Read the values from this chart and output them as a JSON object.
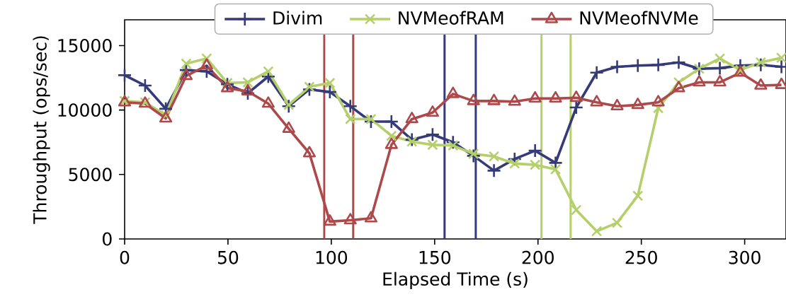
{
  "chart_data": {
    "type": "line",
    "xlabel": "Elapsed Time (s)",
    "ylabel": "Throughput (ops/sec)",
    "x": [
      0,
      9.9,
      19.9,
      29.8,
      39.7,
      49.7,
      59.6,
      69.5,
      79.4,
      89.4,
      99.3,
      109.2,
      119.2,
      129.1,
      139.0,
      149.0,
      158.9,
      168.8,
      178.7,
      188.7,
      198.6,
      208.5,
      218.5,
      228.4,
      238.3,
      248.3,
      258.2,
      268.1,
      278.0,
      288.0,
      297.9,
      307.8,
      317.8
    ],
    "series": [
      {
        "name": "Divim",
        "color": "#353a78",
        "marker": "plus",
        "values": [
          12700,
          11900,
          10100,
          13100,
          13000,
          12000,
          11300,
          12600,
          10300,
          11600,
          11400,
          10300,
          9100,
          9100,
          7700,
          8100,
          7500,
          6450,
          5300,
          6200,
          6850,
          5900,
          10200,
          12900,
          13350,
          13450,
          13500,
          13700,
          13200,
          13250,
          13450,
          13500,
          13350
        ]
      },
      {
        "name": "NVMeofRAM",
        "color": "#b5cf6b",
        "marker": "cross",
        "values": [
          10700,
          10600,
          9600,
          13600,
          14000,
          12100,
          12150,
          13000,
          10400,
          11800,
          12100,
          9300,
          9300,
          8000,
          7550,
          7300,
          7250,
          6600,
          6400,
          5850,
          5750,
          5400,
          2250,
          600,
          1250,
          3350,
          10150,
          12150,
          13200,
          14000,
          13100,
          13700,
          14050
        ]
      },
      {
        "name": "NVMeofNVMe",
        "color": "#ad494a",
        "marker": "triangle",
        "values": [
          10600,
          10500,
          9350,
          12650,
          13450,
          11700,
          11450,
          10500,
          8550,
          6650,
          1350,
          1450,
          1600,
          7300,
          9300,
          9800,
          11250,
          10700,
          10700,
          10650,
          10900,
          10900,
          10950,
          10600,
          10300,
          10400,
          10600,
          11700,
          12150,
          12150,
          12900,
          11900,
          11950
        ]
      }
    ],
    "xlim": [
      0,
      320
    ],
    "ylim": [
      0,
      17000
    ],
    "xticks": [
      0,
      50,
      100,
      150,
      200,
      250,
      300
    ],
    "yticks": [
      0,
      5000,
      10000,
      15000
    ],
    "ref_lines": [
      {
        "axis": "x",
        "value": 96.6,
        "color": "#ad494a"
      },
      {
        "axis": "x",
        "value": 110.6,
        "color": "#ad494a"
      },
      {
        "axis": "x",
        "value": 154.8,
        "color": "#353a78"
      },
      {
        "axis": "x",
        "value": 169.9,
        "color": "#353a78"
      },
      {
        "axis": "x",
        "value": 201.7,
        "color": "#b5cf6b"
      },
      {
        "axis": "x",
        "value": 215.8,
        "color": "#b5cf6b"
      }
    ],
    "legend": "top",
    "grid": false,
    "line_style": "solid"
  }
}
